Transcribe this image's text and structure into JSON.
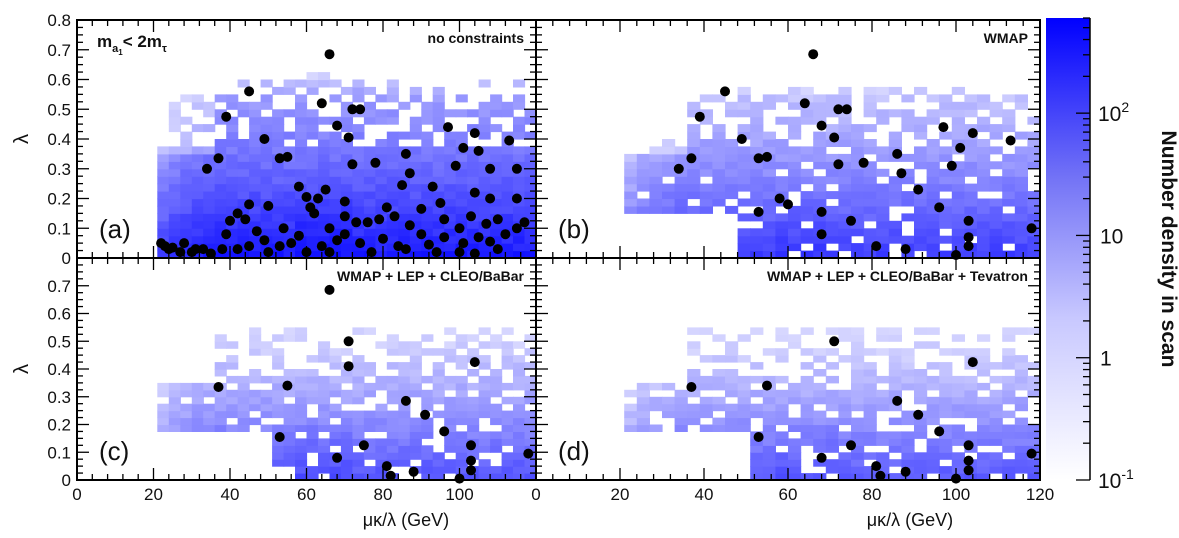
{
  "chart_data": {
    "type": "heatmap",
    "overlay": "scatter",
    "figure_annotation": {
      "m": "m",
      "a": "a",
      "one": "1",
      "rest": "< 2m",
      "tau": "τ"
    },
    "x_axis": {
      "label": "μκ/λ (GeV)",
      "range": [
        0,
        120
      ],
      "ticks": [
        0,
        20,
        40,
        60,
        80,
        100,
        120
      ]
    },
    "y_axis": {
      "label": "λ",
      "range": [
        0,
        0.8
      ],
      "ticks": [
        0,
        0.1,
        0.2,
        0.3,
        0.4,
        0.5,
        0.6,
        0.7,
        0.8
      ]
    },
    "colorbar": {
      "label": "Number density in scan",
      "scale": "log",
      "range": [
        0.1,
        600
      ],
      "ticks": [
        "10^-1",
        "1",
        "10",
        "10^2"
      ],
      "color_low": "#ffffff",
      "color_high": "#0000ff"
    },
    "bins": {
      "x_width": 3,
      "y_width": 0.025
    },
    "panels": [
      {
        "id": "a",
        "title": "no constraints",
        "letter": "(a)",
        "points": [
          [
            66,
            0.685
          ],
          [
            45,
            0.56
          ],
          [
            64,
            0.52
          ],
          [
            72,
            0.5
          ],
          [
            74,
            0.5
          ],
          [
            39,
            0.475
          ],
          [
            68,
            0.445
          ],
          [
            71,
            0.405
          ],
          [
            49,
            0.4
          ],
          [
            97,
            0.44
          ],
          [
            104,
            0.42
          ],
          [
            101,
            0.37
          ],
          [
            113,
            0.395
          ],
          [
            37,
            0.335
          ],
          [
            53,
            0.335
          ],
          [
            55,
            0.34
          ],
          [
            34,
            0.3
          ],
          [
            72,
            0.315
          ],
          [
            78,
            0.32
          ],
          [
            86,
            0.35
          ],
          [
            99,
            0.31
          ],
          [
            105,
            0.36
          ],
          [
            108,
            0.3
          ],
          [
            115,
            0.3
          ],
          [
            87,
            0.285
          ],
          [
            58,
            0.24
          ],
          [
            60,
            0.205
          ],
          [
            63,
            0.2
          ],
          [
            65,
            0.23
          ],
          [
            85,
            0.245
          ],
          [
            93,
            0.24
          ],
          [
            104,
            0.22
          ],
          [
            108,
            0.2
          ],
          [
            115,
            0.2
          ],
          [
            50,
            0.175
          ],
          [
            45,
            0.18
          ],
          [
            61,
            0.17
          ],
          [
            70,
            0.19
          ],
          [
            81,
            0.17
          ],
          [
            90,
            0.165
          ],
          [
            95,
            0.185
          ],
          [
            42,
            0.15
          ],
          [
            44,
            0.13
          ],
          [
            62,
            0.15
          ],
          [
            70,
            0.14
          ],
          [
            73,
            0.12
          ],
          [
            79,
            0.13
          ],
          [
            83,
            0.14
          ],
          [
            96,
            0.13
          ],
          [
            103,
            0.14
          ],
          [
            110,
            0.13
          ],
          [
            40,
            0.125
          ],
          [
            54,
            0.1
          ],
          [
            66,
            0.1
          ],
          [
            76,
            0.12
          ],
          [
            87,
            0.11
          ],
          [
            100,
            0.1
          ],
          [
            107,
            0.115
          ],
          [
            39,
            0.08
          ],
          [
            47,
            0.09
          ],
          [
            58,
            0.075
          ],
          [
            70,
            0.08
          ],
          [
            80,
            0.065
          ],
          [
            90,
            0.08
          ],
          [
            96,
            0.07
          ],
          [
            105,
            0.07
          ],
          [
            112,
            0.08
          ],
          [
            45,
            0.04
          ],
          [
            49,
            0.06
          ],
          [
            56,
            0.05
          ],
          [
            64,
            0.04
          ],
          [
            68,
            0.06
          ],
          [
            74,
            0.05
          ],
          [
            84,
            0.04
          ],
          [
            92,
            0.045
          ],
          [
            101,
            0.05
          ],
          [
            108,
            0.055
          ],
          [
            115,
            0.1
          ],
          [
            117,
            0.12
          ],
          [
            38,
            0.03
          ],
          [
            42,
            0.03
          ],
          [
            50,
            0.02
          ],
          [
            53,
            0.04
          ],
          [
            60,
            0.02
          ],
          [
            66,
            0.02
          ],
          [
            77,
            0.02
          ],
          [
            86,
            0.03
          ],
          [
            94,
            0.02
          ],
          [
            100,
            0.02
          ],
          [
            104,
            0.015
          ],
          [
            110,
            0.03
          ],
          [
            23,
            0.04
          ],
          [
            25,
            0.035
          ],
          [
            28,
            0.05
          ],
          [
            30,
            0.02
          ],
          [
            33,
            0.03
          ],
          [
            35,
            0.015
          ],
          [
            27,
            0.02
          ],
          [
            22,
            0.05
          ],
          [
            24,
            0.03
          ],
          [
            31,
            0.03
          ]
        ]
      },
      {
        "id": "b",
        "title": "WMAP",
        "letter": "(b)",
        "points": [
          [
            66,
            0.685
          ],
          [
            45,
            0.56
          ],
          [
            64,
            0.52
          ],
          [
            72,
            0.5
          ],
          [
            74,
            0.5
          ],
          [
            39,
            0.475
          ],
          [
            68,
            0.445
          ],
          [
            71,
            0.405
          ],
          [
            49,
            0.4
          ],
          [
            97,
            0.44
          ],
          [
            104,
            0.42
          ],
          [
            101,
            0.37
          ],
          [
            113,
            0.395
          ],
          [
            37,
            0.335
          ],
          [
            53,
            0.335
          ],
          [
            55,
            0.34
          ],
          [
            34,
            0.3
          ],
          [
            72,
            0.315
          ],
          [
            78,
            0.32
          ],
          [
            86,
            0.35
          ],
          [
            99,
            0.31
          ],
          [
            87,
            0.285
          ],
          [
            58,
            0.2
          ],
          [
            60,
            0.18
          ],
          [
            91,
            0.23
          ],
          [
            96,
            0.17
          ],
          [
            53,
            0.155
          ],
          [
            68,
            0.155
          ],
          [
            75,
            0.125
          ],
          [
            103,
            0.125
          ],
          [
            68,
            0.08
          ],
          [
            103,
            0.07
          ],
          [
            118,
            0.1
          ],
          [
            81,
            0.04
          ],
          [
            88,
            0.03
          ],
          [
            100,
            0.01
          ],
          [
            103,
            0.04
          ]
        ]
      },
      {
        "id": "c",
        "title": "WMAP + LEP + CLEO/BaBar",
        "letter": "(c)",
        "points": [
          [
            66,
            0.685
          ],
          [
            71,
            0.5
          ],
          [
            71,
            0.41
          ],
          [
            37,
            0.335
          ],
          [
            55,
            0.34
          ],
          [
            104,
            0.425
          ],
          [
            86,
            0.285
          ],
          [
            91,
            0.235
          ],
          [
            96,
            0.175
          ],
          [
            53,
            0.155
          ],
          [
            75,
            0.125
          ],
          [
            103,
            0.125
          ],
          [
            68,
            0.08
          ],
          [
            103,
            0.07
          ],
          [
            118,
            0.095
          ],
          [
            81,
            0.05
          ],
          [
            88,
            0.03
          ],
          [
            82,
            0.015
          ],
          [
            100,
            0.005
          ],
          [
            103,
            0.035
          ]
        ]
      },
      {
        "id": "d",
        "title": "WMAP + LEP + CLEO/BaBar + Tevatron",
        "letter": "(d)",
        "points": [
          [
            71,
            0.5
          ],
          [
            37,
            0.335
          ],
          [
            55,
            0.34
          ],
          [
            104,
            0.425
          ],
          [
            86,
            0.285
          ],
          [
            91,
            0.235
          ],
          [
            96,
            0.175
          ],
          [
            53,
            0.155
          ],
          [
            75,
            0.125
          ],
          [
            103,
            0.125
          ],
          [
            68,
            0.08
          ],
          [
            103,
            0.07
          ],
          [
            118,
            0.095
          ],
          [
            81,
            0.05
          ],
          [
            88,
            0.03
          ],
          [
            82,
            0.015
          ],
          [
            100,
            0.005
          ],
          [
            103,
            0.035
          ]
        ]
      }
    ]
  }
}
